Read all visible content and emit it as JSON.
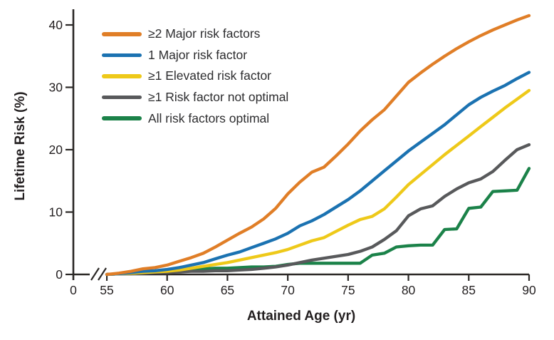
{
  "figure": {
    "xlabel": "Attained Age (yr)",
    "ylabel": "Lifetime Risk (%)"
  },
  "axis_colors": {
    "line": "#2b2826",
    "text": "#231f20"
  },
  "chart_data": {
    "type": "line",
    "title": "",
    "xlabel": "Attained Age (yr)",
    "ylabel": "Lifetime Risk (%)",
    "xlim": [
      55,
      90
    ],
    "ylim": [
      0,
      42
    ],
    "x_ticks": [
      55,
      60,
      65,
      70,
      75,
      80,
      85,
      90
    ],
    "y_ticks": [
      0,
      10,
      20,
      30,
      40
    ],
    "x_axis_break": true,
    "x_origin_label": "0",
    "grid": false,
    "legend_position": "top-left",
    "x": [
      55,
      56,
      57,
      58,
      59,
      60,
      61,
      62,
      63,
      64,
      65,
      66,
      67,
      68,
      69,
      70,
      71,
      72,
      73,
      74,
      75,
      76,
      77,
      78,
      79,
      80,
      81,
      82,
      83,
      84,
      85,
      86,
      87,
      88,
      89,
      90
    ],
    "series": [
      {
        "name": "≥2 Major risk factors",
        "color": "#e07e27",
        "values": [
          0,
          0.2,
          0.5,
          0.9,
          1.1,
          1.5,
          2.1,
          2.7,
          3.4,
          4.4,
          5.5,
          6.6,
          7.6,
          8.9,
          10.6,
          12.9,
          14.8,
          16.4,
          17.2,
          19.0,
          20.9,
          23.0,
          24.8,
          26.4,
          28.6,
          30.8,
          32.3,
          33.7,
          35.0,
          36.2,
          37.3,
          38.3,
          39.2,
          40.0,
          40.8,
          41.5
        ]
      },
      {
        "name": "1 Major risk factor",
        "color": "#1b72b1",
        "values": [
          0,
          0.1,
          0.3,
          0.5,
          0.6,
          0.8,
          1.1,
          1.5,
          1.9,
          2.5,
          3.1,
          3.6,
          4.3,
          5.0,
          5.7,
          6.6,
          7.8,
          8.6,
          9.6,
          10.8,
          12.0,
          13.4,
          15.0,
          16.6,
          18.2,
          19.8,
          21.2,
          22.6,
          24.0,
          25.6,
          27.2,
          28.4,
          29.4,
          30.3,
          31.4,
          32.4
        ]
      },
      {
        "name": "≥1 Elevated risk factor",
        "color": "#eec919",
        "values": [
          0,
          0.1,
          0.2,
          0.3,
          0.4,
          0.5,
          0.7,
          1.0,
          1.3,
          1.6,
          1.9,
          2.3,
          2.7,
          3.1,
          3.5,
          4.0,
          4.7,
          5.4,
          5.9,
          6.9,
          7.9,
          8.8,
          9.3,
          10.5,
          12.4,
          14.4,
          16.0,
          17.6,
          19.2,
          20.7,
          22.2,
          23.7,
          25.2,
          26.7,
          28.1,
          29.5
        ]
      },
      {
        "name": "≥1 Risk factor not optimal",
        "color": "#58595b",
        "values": [
          0,
          0.1,
          0.1,
          0.2,
          0.3,
          0.3,
          0.4,
          0.5,
          0.5,
          0.6,
          0.6,
          0.7,
          0.8,
          1.0,
          1.2,
          1.5,
          1.9,
          2.3,
          2.6,
          2.9,
          3.2,
          3.7,
          4.4,
          5.6,
          7.0,
          9.4,
          10.5,
          11.0,
          12.5,
          13.7,
          14.7,
          15.3,
          16.5,
          18.3,
          20.0,
          20.8
        ]
      },
      {
        "name": "All risk factors optimal",
        "color": "#1b8249",
        "values": [
          0,
          0.1,
          0.2,
          0.3,
          0.4,
          0.5,
          0.6,
          0.8,
          0.9,
          1.0,
          1.0,
          1.1,
          1.2,
          1.2,
          1.3,
          1.6,
          1.8,
          1.8,
          1.8,
          1.8,
          1.8,
          1.8,
          3.1,
          3.4,
          4.4,
          4.6,
          4.7,
          4.7,
          7.2,
          7.3,
          10.6,
          10.8,
          13.3,
          13.4,
          13.5,
          17.0
        ]
      }
    ]
  }
}
